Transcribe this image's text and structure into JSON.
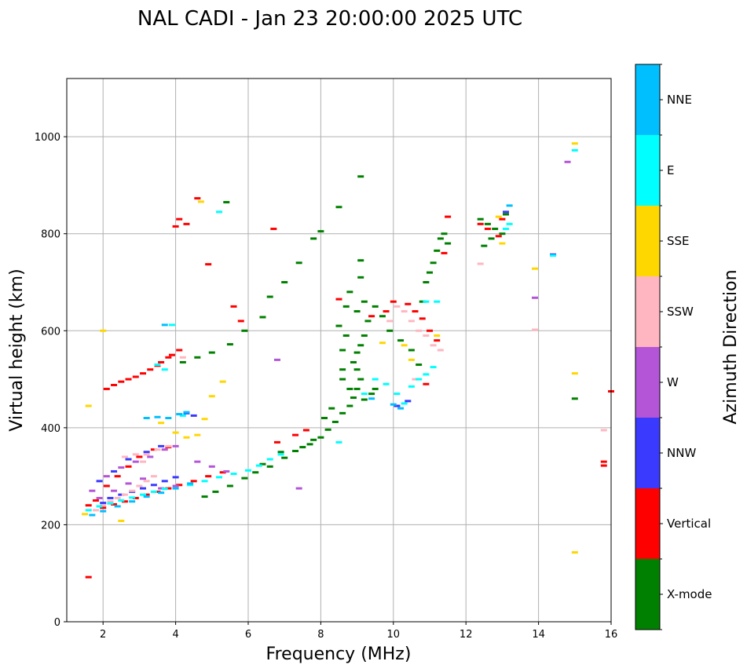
{
  "chart_data": {
    "type": "scatter",
    "title": "NAL CADI - Jan 23 20:00:00 2025 UTC",
    "xlabel": "Frequency (MHz)",
    "ylabel": "Virtual height (km)",
    "xlim": [
      1,
      16
    ],
    "ylim": [
      0,
      1120
    ],
    "xticks": [
      2,
      4,
      6,
      8,
      10,
      12,
      14,
      16
    ],
    "yticks": [
      0,
      200,
      400,
      600,
      800,
      1000
    ],
    "grid": true,
    "colorbar": {
      "label": "Azimuth Direction",
      "categories": [
        "X-mode",
        "Vertical",
        "NNW",
        "W",
        "SSW",
        "SSE",
        "E",
        "NNE"
      ],
      "colors": [
        "#008000",
        "#ff0000",
        "#3a3aff",
        "#b455d8",
        "#ffb6c1",
        "#ffd700",
        "#00ffff",
        "#00bfff"
      ]
    },
    "series": [
      {
        "name": "X-mode",
        "points": [
          [
            5.4,
            865
          ],
          [
            8.5,
            855
          ],
          [
            9.1,
            918
          ],
          [
            6.6,
            670
          ],
          [
            7.0,
            700
          ],
          [
            7.4,
            740
          ],
          [
            7.8,
            790
          ],
          [
            8.0,
            805
          ],
          [
            6.4,
            628
          ],
          [
            5.9,
            600
          ],
          [
            5.5,
            572
          ],
          [
            5.0,
            555
          ],
          [
            4.6,
            545
          ],
          [
            4.2,
            535
          ],
          [
            4.8,
            258
          ],
          [
            5.1,
            268
          ],
          [
            5.5,
            280
          ],
          [
            5.9,
            296
          ],
          [
            6.2,
            308
          ],
          [
            6.6,
            320
          ],
          [
            7.0,
            338
          ],
          [
            7.3,
            352
          ],
          [
            7.7,
            366
          ],
          [
            8.0,
            380
          ],
          [
            8.2,
            396
          ],
          [
            8.4,
            412
          ],
          [
            8.6,
            430
          ],
          [
            8.8,
            445
          ],
          [
            8.9,
            462
          ],
          [
            9.0,
            480
          ],
          [
            9.1,
            500
          ],
          [
            9.0,
            520
          ],
          [
            8.9,
            535
          ],
          [
            9.0,
            555
          ],
          [
            9.1,
            570
          ],
          [
            9.2,
            590
          ],
          [
            9.3,
            620
          ],
          [
            9.0,
            640
          ],
          [
            9.2,
            660
          ],
          [
            9.1,
            710
          ],
          [
            9.1,
            745
          ],
          [
            8.8,
            680
          ],
          [
            8.7,
            650
          ],
          [
            8.5,
            610
          ],
          [
            8.7,
            590
          ],
          [
            8.6,
            560
          ],
          [
            8.6,
            520
          ],
          [
            8.6,
            500
          ],
          [
            8.8,
            480
          ],
          [
            9.2,
            458
          ],
          [
            9.4,
            470
          ],
          [
            9.5,
            480
          ],
          [
            8.1,
            420
          ],
          [
            8.3,
            440
          ],
          [
            7.8,
            375
          ],
          [
            7.5,
            360
          ],
          [
            6.9,
            350
          ],
          [
            6.4,
            325
          ],
          [
            10.8,
            660
          ],
          [
            10.9,
            700
          ],
          [
            11.0,
            720
          ],
          [
            11.2,
            765
          ],
          [
            11.3,
            790
          ],
          [
            11.4,
            800
          ],
          [
            11.5,
            780
          ],
          [
            11.1,
            740
          ],
          [
            12.4,
            830
          ],
          [
            12.6,
            820
          ],
          [
            12.8,
            810
          ],
          [
            13.0,
            800
          ],
          [
            12.7,
            790
          ],
          [
            12.5,
            775
          ],
          [
            13.1,
            840
          ],
          [
            15.0,
            460
          ],
          [
            9.5,
            650
          ],
          [
            9.7,
            630
          ],
          [
            9.9,
            600
          ],
          [
            10.2,
            580
          ],
          [
            10.5,
            560
          ],
          [
            10.7,
            530
          ]
        ]
      },
      {
        "name": "Vertical",
        "points": [
          [
            1.6,
            92
          ],
          [
            2.1,
            480
          ],
          [
            2.5,
            495
          ],
          [
            2.9,
            505
          ],
          [
            3.3,
            520
          ],
          [
            3.6,
            535
          ],
          [
            3.9,
            550
          ],
          [
            4.1,
            560
          ],
          [
            2.3,
            488
          ],
          [
            2.7,
            500
          ],
          [
            3.1,
            512
          ],
          [
            3.5,
            528
          ],
          [
            3.8,
            545
          ],
          [
            4.1,
            830
          ],
          [
            4.0,
            815
          ],
          [
            4.3,
            820
          ],
          [
            4.6,
            873
          ],
          [
            4.9,
            737
          ],
          [
            6.7,
            810
          ],
          [
            2.0,
            235
          ],
          [
            2.3,
            242
          ],
          [
            2.6,
            248
          ],
          [
            2.9,
            255
          ],
          [
            3.2,
            262
          ],
          [
            3.5,
            268
          ],
          [
            3.8,
            275
          ],
          [
            4.1,
            282
          ],
          [
            4.5,
            290
          ],
          [
            4.9,
            300
          ],
          [
            5.3,
            308
          ],
          [
            1.6,
            240
          ],
          [
            1.8,
            250
          ],
          [
            2.1,
            280
          ],
          [
            2.4,
            300
          ],
          [
            2.7,
            320
          ],
          [
            3.0,
            340
          ],
          [
            3.4,
            355
          ],
          [
            3.8,
            360
          ],
          [
            6.8,
            370
          ],
          [
            7.3,
            385
          ],
          [
            7.6,
            395
          ],
          [
            8.5,
            665
          ],
          [
            9.4,
            630
          ],
          [
            9.8,
            640
          ],
          [
            10.0,
            660
          ],
          [
            10.4,
            655
          ],
          [
            10.6,
            640
          ],
          [
            10.8,
            625
          ],
          [
            11.0,
            600
          ],
          [
            11.2,
            580
          ],
          [
            10.9,
            490
          ],
          [
            11.4,
            760
          ],
          [
            11.5,
            835
          ],
          [
            12.4,
            820
          ],
          [
            12.6,
            810
          ],
          [
            12.9,
            795
          ],
          [
            13.0,
            830
          ],
          [
            16.0,
            475
          ],
          [
            15.8,
            330
          ],
          [
            15.8,
            322
          ],
          [
            5.6,
            650
          ],
          [
            5.8,
            620
          ]
        ]
      },
      {
        "name": "NNW",
        "points": [
          [
            2.0,
            245
          ],
          [
            2.2,
            255
          ],
          [
            2.5,
            262
          ],
          [
            2.8,
            268
          ],
          [
            3.1,
            275
          ],
          [
            3.4,
            282
          ],
          [
            3.7,
            290
          ],
          [
            4.0,
            298
          ],
          [
            1.9,
            290
          ],
          [
            2.3,
            310
          ],
          [
            2.7,
            335
          ],
          [
            3.2,
            350
          ],
          [
            3.6,
            362
          ],
          [
            4.3,
            430
          ],
          [
            4.5,
            425
          ],
          [
            10.1,
            445
          ],
          [
            10.4,
            455
          ],
          [
            13.1,
            845
          ],
          [
            14.4,
            757
          ]
        ]
      },
      {
        "name": "W",
        "points": [
          [
            1.7,
            270
          ],
          [
            2.1,
            300
          ],
          [
            2.5,
            318
          ],
          [
            2.9,
            330
          ],
          [
            3.3,
            340
          ],
          [
            3.7,
            355
          ],
          [
            4.0,
            362
          ],
          [
            4.6,
            330
          ],
          [
            5.0,
            320
          ],
          [
            5.4,
            310
          ],
          [
            1.9,
            255
          ],
          [
            2.3,
            270
          ],
          [
            2.7,
            285
          ],
          [
            3.1,
            295
          ],
          [
            3.6,
            275
          ],
          [
            4.0,
            280
          ],
          [
            13.9,
            668
          ],
          [
            14.8,
            948
          ],
          [
            6.8,
            540
          ],
          [
            7.4,
            275
          ]
        ]
      },
      {
        "name": "SSW",
        "points": [
          [
            1.8,
            230
          ],
          [
            2.0,
            240
          ],
          [
            2.2,
            248
          ],
          [
            2.4,
            255
          ],
          [
            2.6,
            262
          ],
          [
            2.8,
            270
          ],
          [
            3.0,
            280
          ],
          [
            3.2,
            290
          ],
          [
            3.4,
            300
          ],
          [
            2.6,
            340
          ],
          [
            2.9,
            345
          ],
          [
            3.2,
            345
          ],
          [
            3.5,
            355
          ],
          [
            3.8,
            362
          ],
          [
            3.1,
            330
          ],
          [
            10.3,
            640
          ],
          [
            10.5,
            620
          ],
          [
            10.7,
            600
          ],
          [
            10.9,
            590
          ],
          [
            11.1,
            570
          ],
          [
            11.3,
            560
          ],
          [
            10.1,
            650
          ],
          [
            9.9,
            620
          ],
          [
            10.6,
            500
          ],
          [
            12.4,
            738
          ],
          [
            13.9,
            602
          ],
          [
            15.8,
            395
          ],
          [
            4.2,
            545
          ]
        ]
      },
      {
        "name": "SSE",
        "points": [
          [
            1.5,
            222
          ],
          [
            1.6,
            445
          ],
          [
            2.0,
            600
          ],
          [
            2.5,
            208
          ],
          [
            3.6,
            410
          ],
          [
            4.0,
            390
          ],
          [
            4.3,
            380
          ],
          [
            4.6,
            385
          ],
          [
            4.8,
            418
          ],
          [
            5.0,
            465
          ],
          [
            5.3,
            495
          ],
          [
            4.7,
            866
          ],
          [
            9.7,
            575
          ],
          [
            10.3,
            570
          ],
          [
            10.5,
            540
          ],
          [
            12.9,
            835
          ],
          [
            13.0,
            780
          ],
          [
            13.9,
            728
          ],
          [
            15.0,
            986
          ],
          [
            15.0,
            512
          ],
          [
            15.0,
            143
          ],
          [
            11.2,
            590
          ]
        ]
      },
      {
        "name": "E",
        "points": [
          [
            1.6,
            230
          ],
          [
            1.9,
            238
          ],
          [
            2.2,
            244
          ],
          [
            2.5,
            250
          ],
          [
            2.8,
            256
          ],
          [
            3.1,
            262
          ],
          [
            3.4,
            268
          ],
          [
            3.7,
            274
          ],
          [
            4.4,
            282
          ],
          [
            4.8,
            290
          ],
          [
            5.2,
            298
          ],
          [
            5.6,
            305
          ],
          [
            6.0,
            312
          ],
          [
            6.3,
            322
          ],
          [
            6.6,
            335
          ],
          [
            6.9,
            345
          ],
          [
            3.5,
            530
          ],
          [
            3.7,
            520
          ],
          [
            3.9,
            612
          ],
          [
            5.2,
            845
          ],
          [
            8.5,
            370
          ],
          [
            9.2,
            470
          ],
          [
            9.5,
            500
          ],
          [
            9.8,
            490
          ],
          [
            10.1,
            470
          ],
          [
            10.3,
            450
          ],
          [
            10.5,
            485
          ],
          [
            10.7,
            500
          ],
          [
            10.9,
            510
          ],
          [
            11.1,
            525
          ],
          [
            10.9,
            660
          ],
          [
            11.2,
            660
          ],
          [
            13.1,
            810
          ],
          [
            13.2,
            820
          ],
          [
            15.0,
            972
          ],
          [
            14.4,
            755
          ],
          [
            4.2,
            425
          ]
        ]
      },
      {
        "name": "NNE",
        "points": [
          [
            1.7,
            220
          ],
          [
            2.0,
            228
          ],
          [
            2.4,
            238
          ],
          [
            2.8,
            248
          ],
          [
            3.2,
            258
          ],
          [
            3.6,
            266
          ],
          [
            4.0,
            275
          ],
          [
            4.4,
            285
          ],
          [
            3.2,
            420
          ],
          [
            3.5,
            422
          ],
          [
            3.8,
            420
          ],
          [
            4.1,
            428
          ],
          [
            4.3,
            432
          ],
          [
            3.7,
            612
          ],
          [
            10.0,
            448
          ],
          [
            10.2,
            440
          ],
          [
            13.2,
            858
          ],
          [
            9.4,
            460
          ]
        ]
      }
    ]
  }
}
